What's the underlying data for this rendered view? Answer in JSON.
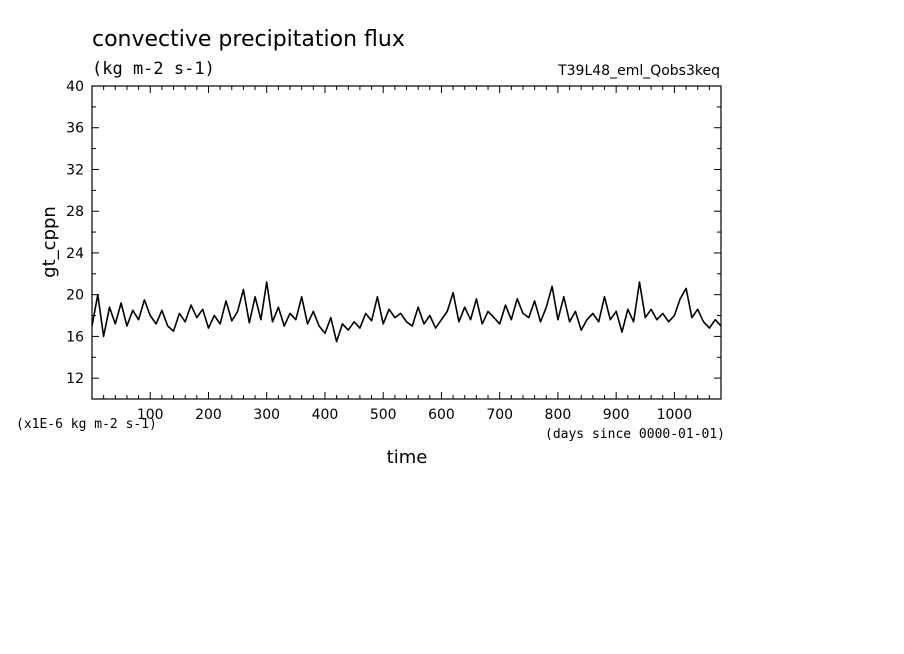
{
  "chart_data": {
    "type": "line",
    "title": "convective precipitation flux",
    "subtitle": "(kg m-2 s-1)",
    "run_label": "T39L48_eml_Qobs3keq",
    "xlabel": "time",
    "ylabel": "gt_cppn",
    "y_scale_note": "(x1E-6 kg m-2 s-1)",
    "x_units_note": "(days since 0000-01-01)",
    "xlim": [
      0,
      1080
    ],
    "ylim": [
      10,
      40
    ],
    "x_ticks": [
      100,
      200,
      300,
      400,
      500,
      600,
      700,
      800,
      900,
      1000
    ],
    "y_ticks": [
      12,
      16,
      20,
      24,
      28,
      32,
      36,
      40
    ],
    "grid": false,
    "line_color": "#000000",
    "series": [
      {
        "x": [
          0,
          10,
          20,
          30,
          40,
          50,
          60,
          70,
          80,
          90,
          100,
          110,
          120,
          130,
          140,
          150,
          160,
          170,
          180,
          190,
          200,
          210,
          220,
          230,
          240,
          250,
          260,
          270,
          280,
          290,
          300,
          310,
          320,
          330,
          340,
          350,
          360,
          370,
          380,
          390,
          400,
          410,
          420,
          430,
          440,
          450,
          460,
          470,
          480,
          490,
          500,
          510,
          520,
          530,
          540,
          550,
          560,
          570,
          580,
          590,
          600,
          610,
          620,
          630,
          640,
          650,
          660,
          670,
          680,
          690,
          700,
          710,
          720,
          730,
          740,
          750,
          760,
          770,
          780,
          790,
          800,
          810,
          820,
          830,
          840,
          850,
          860,
          870,
          880,
          890,
          900,
          910,
          920,
          930,
          940,
          950,
          960,
          970,
          980,
          990,
          1000,
          1010,
          1020,
          1030,
          1040,
          1050,
          1060,
          1070,
          1080
        ],
        "values": [
          17.0,
          20.0,
          16.0,
          18.8,
          17.2,
          19.2,
          17.0,
          18.5,
          17.6,
          19.5,
          18.0,
          17.2,
          18.5,
          17.0,
          16.5,
          18.2,
          17.4,
          19.0,
          17.8,
          18.6,
          16.8,
          18.0,
          17.2,
          19.4,
          17.5,
          18.4,
          20.5,
          17.3,
          19.8,
          17.6,
          21.2,
          17.4,
          18.8,
          17.0,
          18.2,
          17.6,
          19.8,
          17.2,
          18.4,
          17.0,
          16.3,
          17.8,
          15.5,
          17.2,
          16.6,
          17.4,
          16.8,
          18.2,
          17.5,
          19.8,
          17.2,
          18.6,
          17.8,
          18.2,
          17.4,
          17.0,
          18.8,
          17.2,
          18.0,
          16.8,
          17.6,
          18.4,
          20.2,
          17.4,
          18.8,
          17.6,
          19.6,
          17.2,
          18.4,
          17.8,
          17.2,
          19.0,
          17.6,
          19.6,
          18.2,
          17.8,
          19.4,
          17.4,
          18.8,
          20.8,
          17.6,
          19.8,
          17.4,
          18.4,
          16.6,
          17.6,
          18.2,
          17.4,
          19.8,
          17.6,
          18.4,
          16.4,
          18.6,
          17.4,
          21.2,
          17.8,
          18.6,
          17.6,
          18.2,
          17.4,
          18.0,
          19.6,
          20.6,
          17.8,
          18.6,
          17.4,
          16.8,
          17.6,
          17.0
        ]
      }
    ]
  }
}
